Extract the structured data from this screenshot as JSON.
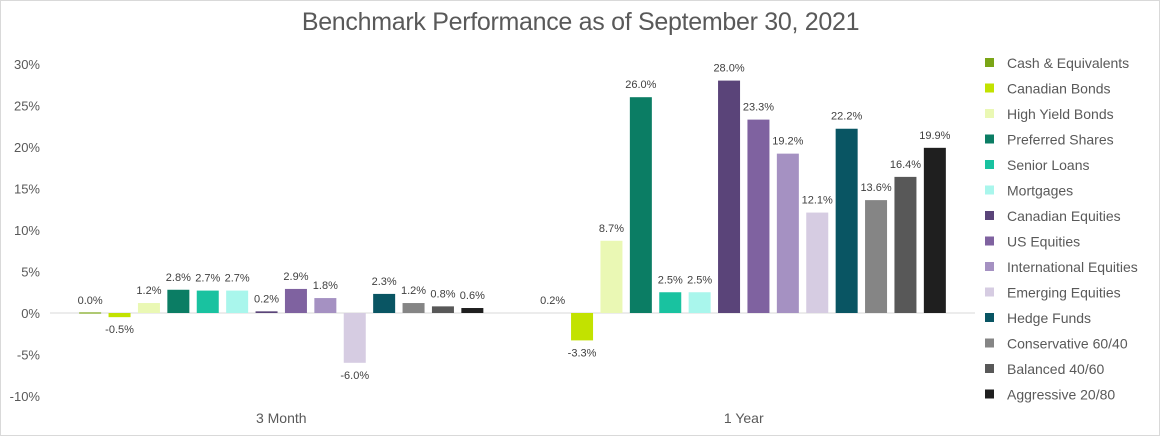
{
  "chart_data": {
    "type": "bar",
    "title": "Benchmark Performance as of September 30, 2021",
    "categories": [
      "3 Month",
      "1 Year"
    ],
    "ylim": [
      -10,
      30
    ],
    "yticks": [
      -10,
      -5,
      0,
      5,
      10,
      15,
      20,
      25,
      30
    ],
    "ytick_labels": [
      "-10%",
      "-5%",
      "0%",
      "5%",
      "10%",
      "15%",
      "20%",
      "25%",
      "30%"
    ],
    "grid": false,
    "legend_position": "right",
    "series": [
      {
        "name": "Cash & Equivalents",
        "color": "#7aa516",
        "values": [
          0.0,
          null
        ],
        "labels": [
          "0.0%",
          ""
        ]
      },
      {
        "name": "Canadian Bonds",
        "color": "#c2e200",
        "values": [
          -0.5,
          -3.3
        ],
        "labels": [
          "-0.5%",
          "-3.3%"
        ]
      },
      {
        "name": "High Yield Bonds",
        "color": "#eaf8b4",
        "values": [
          1.2,
          8.7
        ],
        "labels": [
          "1.2%",
          "8.7%"
        ]
      },
      {
        "name": "Preferred Shares",
        "color": "#0b7d64",
        "values": [
          2.8,
          26.0
        ],
        "labels": [
          "2.8%",
          "26.0%"
        ]
      },
      {
        "name": "Senior Loans",
        "color": "#19c2a0",
        "values": [
          2.7,
          2.5
        ],
        "labels": [
          "2.7%",
          "2.5%"
        ]
      },
      {
        "name": "Mortgages",
        "color": "#a9f6ec",
        "values": [
          2.7,
          2.5
        ],
        "labels": [
          "2.7%",
          "2.5%"
        ]
      },
      {
        "name": "Canadian Equities",
        "color": "#5a4479",
        "values": [
          0.2,
          28.0
        ],
        "labels": [
          "0.2%",
          "28.0%"
        ]
      },
      {
        "name": "US Equities",
        "color": "#7f62a0",
        "values": [
          2.9,
          23.3
        ],
        "labels": [
          "2.9%",
          "23.3%"
        ]
      },
      {
        "name": "International Equities",
        "color": "#a591c2",
        "values": [
          1.8,
          19.2
        ],
        "labels": [
          "1.8%",
          "19.2%"
        ]
      },
      {
        "name": "Emerging Equities",
        "color": "#d6cce2",
        "values": [
          -6.0,
          12.1
        ],
        "labels": [
          "-6.0%",
          "12.1%"
        ]
      },
      {
        "name": "Hedge Funds",
        "color": "#095563",
        "values": [
          2.3,
          22.2
        ],
        "labels": [
          "2.3%",
          "22.2%"
        ]
      },
      {
        "name": "Conservative 60/40",
        "color": "#858585",
        "values": [
          1.2,
          13.6
        ],
        "labels": [
          "1.2%",
          "13.6%"
        ]
      },
      {
        "name": "Balanced 40/60",
        "color": "#585858",
        "values": [
          0.8,
          16.4
        ],
        "labels": [
          "0.8%",
          "16.4%"
        ]
      },
      {
        "name": "Aggressive 20/80",
        "color": "#1f1f1f",
        "values": [
          0.6,
          19.9
        ],
        "labels": [
          "0.6%",
          "19.9%"
        ]
      }
    ],
    "extra_labels": [
      {
        "category": "1 Year",
        "text": "0.2%"
      }
    ]
  }
}
